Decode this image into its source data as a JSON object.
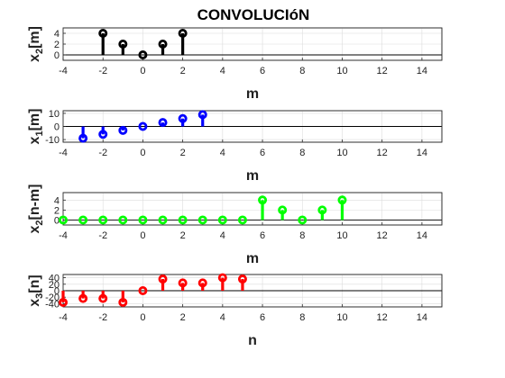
{
  "title": "CONVOLUCIóN",
  "chart_data": [
    {
      "type": "stem",
      "xlabel": "m",
      "ylabel_base": "x",
      "ylabel_sub": "2",
      "ylabel_arg": "[m]",
      "xlim": [
        -4,
        15
      ],
      "ylim": [
        -1,
        5
      ],
      "xticks": [
        -4,
        -2,
        0,
        2,
        4,
        6,
        8,
        10,
        12,
        14
      ],
      "yticks": [
        0,
        2,
        4
      ],
      "color": "#000000",
      "grid": true,
      "x": [
        -2,
        -1,
        0,
        1,
        2
      ],
      "y": [
        4,
        2,
        0,
        2,
        4
      ]
    },
    {
      "type": "stem",
      "xlabel": "m",
      "ylabel_base": "x",
      "ylabel_sub": "1",
      "ylabel_arg": "[m]",
      "xlim": [
        -4,
        15
      ],
      "ylim": [
        -12,
        12
      ],
      "xticks": [
        -4,
        -2,
        0,
        2,
        4,
        6,
        8,
        10,
        12,
        14
      ],
      "yticks": [
        -10,
        0,
        10
      ],
      "color": "#0000ff",
      "grid": true,
      "x": [
        -3,
        -2,
        -1,
        0,
        1,
        2,
        3
      ],
      "y": [
        -9,
        -6,
        -3,
        0,
        3,
        6,
        9
      ]
    },
    {
      "type": "stem",
      "xlabel": "m",
      "ylabel_base": "x",
      "ylabel_sub": "2",
      "ylabel_arg": "[n-m]",
      "xlim": [
        -4,
        15
      ],
      "ylim": [
        -1,
        5.5
      ],
      "xticks": [
        -4,
        -2,
        0,
        2,
        4,
        6,
        8,
        10,
        12,
        14
      ],
      "yticks": [
        0,
        2,
        4
      ],
      "color": "#00ff00",
      "grid": true,
      "x": [
        -4,
        -3,
        -2,
        -1,
        0,
        1,
        2,
        3,
        4,
        5,
        6,
        7,
        8,
        9,
        10
      ],
      "y": [
        0,
        0,
        0,
        0,
        0,
        0,
        0,
        0,
        0,
        0,
        4,
        2,
        0,
        2,
        4
      ]
    },
    {
      "type": "stem",
      "xlabel": "n",
      "ylabel_base": "x",
      "ylabel_sub": "3",
      "ylabel_arg": "[n]",
      "xlim": [
        -4,
        15
      ],
      "ylim": [
        -50,
        50
      ],
      "xticks": [
        -4,
        -2,
        0,
        2,
        4,
        6,
        8,
        10,
        12,
        14
      ],
      "yticks": [
        -40,
        -20,
        0,
        20,
        40
      ],
      "color": "#ff0000",
      "grid": true,
      "x": [
        -4,
        -3,
        -2,
        -1,
        0,
        1,
        2,
        3,
        4,
        5
      ],
      "y": [
        -36,
        -24,
        -24,
        -36,
        0,
        36,
        24,
        24,
        40,
        36
      ]
    }
  ]
}
